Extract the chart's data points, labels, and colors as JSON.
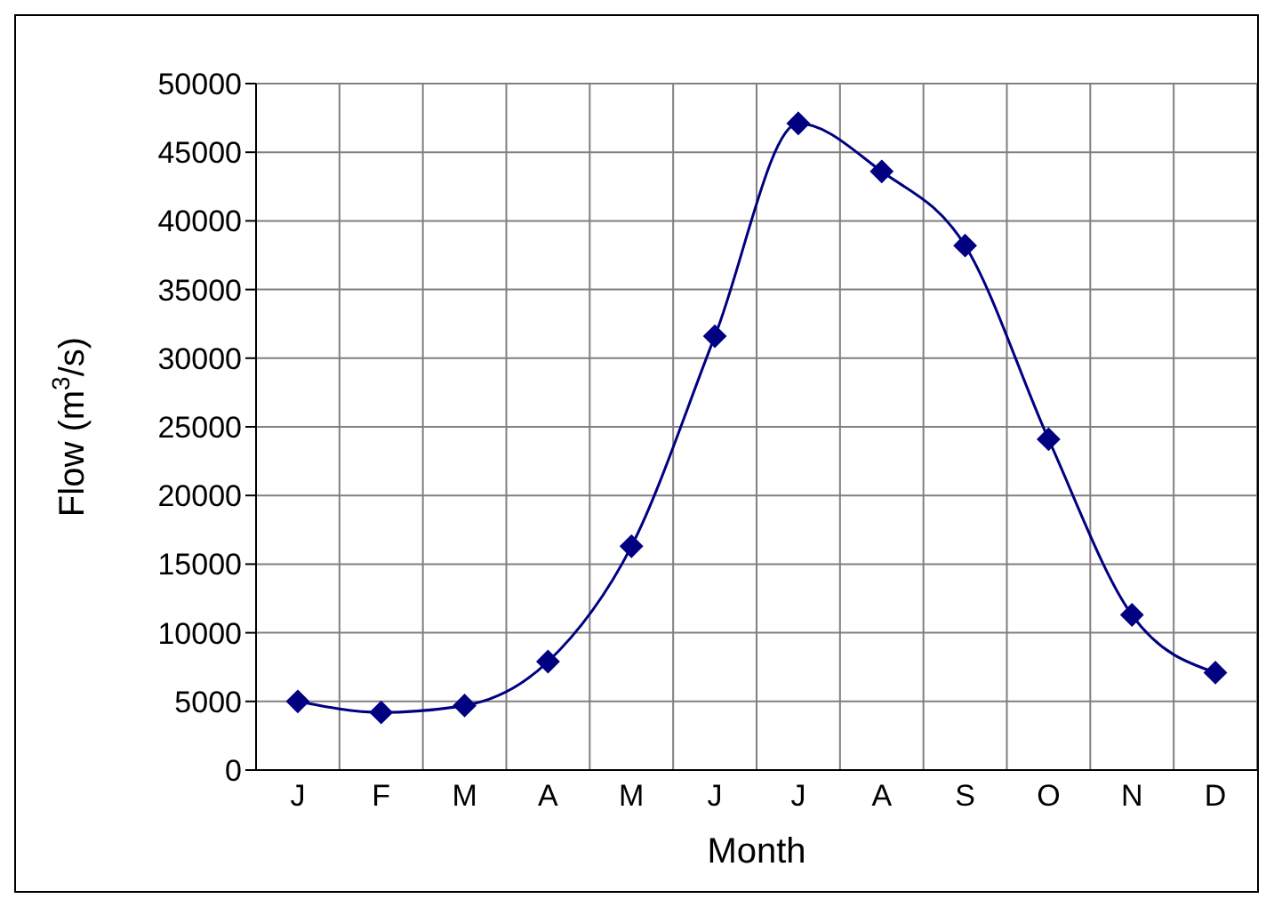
{
  "chart_data": {
    "type": "line",
    "xlabel": "Month",
    "ylabel": "Flow (m$^{3}$/s)",
    "categories": [
      "J",
      "F",
      "M",
      "A",
      "M",
      "J",
      "J",
      "A",
      "S",
      "O",
      "N",
      "D"
    ],
    "series": [
      {
        "color": "#000080",
        "values": [
          5000,
          4200,
          4700,
          7900,
          16300,
          31600,
          47100,
          43600,
          38200,
          24100,
          11300,
          7100
        ]
      }
    ],
    "ylim": [
      0,
      50000
    ],
    "yticks": [
      0,
      5000,
      10000,
      15000,
      20000,
      25000,
      30000,
      35000,
      40000,
      45000,
      50000
    ],
    "grid": true,
    "marker": "diamond",
    "line_style": "solid"
  }
}
